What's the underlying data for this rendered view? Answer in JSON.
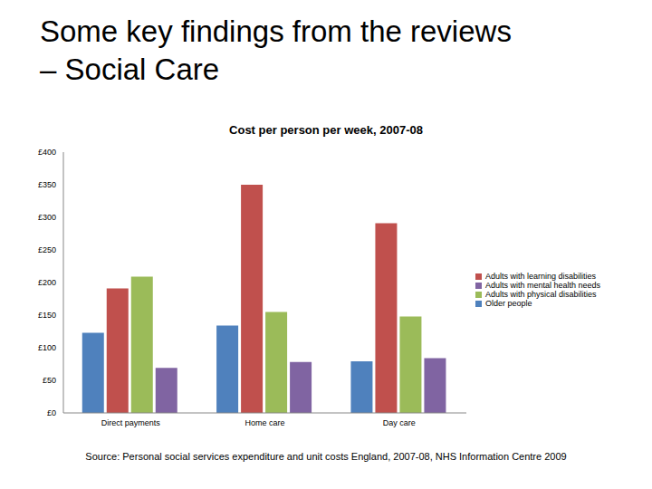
{
  "slide": {
    "heading": [
      "Some key findings from the reviews",
      "– Social Care"
    ],
    "source": "Source: Personal social services expenditure and unit costs England, 2007-08, NHS Information Centre 2009"
  },
  "chart_data": {
    "type": "bar",
    "title": "Cost per person per week, 2007-08",
    "categories": [
      "Direct payments",
      "Home care",
      "Day care"
    ],
    "series": [
      {
        "name": "Older people",
        "color": "#4F81BD",
        "values": [
          123,
          134,
          79
        ]
      },
      {
        "name": "Adults with learning disabilities",
        "color": "#C0504D",
        "values": [
          191,
          350,
          291
        ]
      },
      {
        "name": "Adults with physical disabilities",
        "color": "#9BBB59",
        "values": [
          209,
          155,
          148
        ]
      },
      {
        "name": "Adults with mental health needs",
        "color": "#8064A2",
        "values": [
          69,
          78,
          84
        ]
      }
    ],
    "ylim": [
      0,
      400
    ],
    "yticks": [
      {
        "value": 0,
        "label": "£0"
      },
      {
        "value": 50,
        "label": "£50"
      },
      {
        "value": 100,
        "label": "£100"
      },
      {
        "value": 150,
        "label": "£150"
      },
      {
        "value": 200,
        "label": "£200"
      },
      {
        "value": 250,
        "label": "£250"
      },
      {
        "value": 300,
        "label": "£300"
      },
      {
        "value": 350,
        "label": "£350"
      },
      {
        "value": 400,
        "label": "£400"
      }
    ],
    "grid": false,
    "legend": "right"
  }
}
